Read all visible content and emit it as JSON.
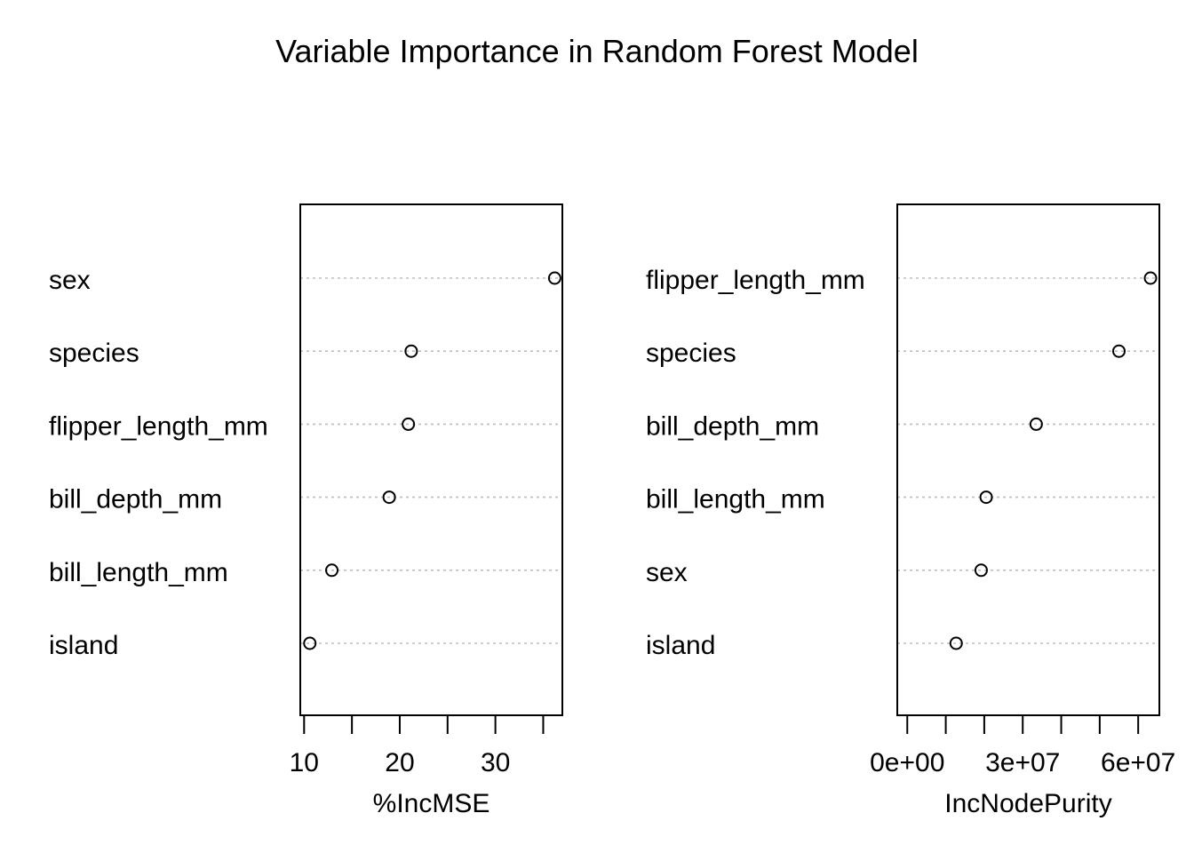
{
  "title": "Variable Importance in Random Forest Model",
  "chart_data": [
    {
      "type": "scatter",
      "subtype": "dotchart",
      "xlabel": "%IncMSE",
      "categories": [
        "sex",
        "species",
        "flipper_length_mm",
        "bill_depth_mm",
        "bill_length_mm",
        "island"
      ],
      "values": [
        36.2,
        21.2,
        20.9,
        18.9,
        12.9,
        10.6
      ],
      "xlim": [
        9.6,
        37.0
      ],
      "xticks": [
        10,
        15,
        20,
        25,
        30,
        35
      ],
      "xtick_labels": [
        "10",
        "",
        "20",
        "",
        "30",
        ""
      ],
      "grid": "dotted horizontal per category"
    },
    {
      "type": "scatter",
      "subtype": "dotchart",
      "xlabel": "IncNodePurity",
      "categories": [
        "flipper_length_mm",
        "species",
        "bill_depth_mm",
        "bill_length_mm",
        "sex",
        "island"
      ],
      "values": [
        63200000,
        55000000,
        33500000,
        20500000,
        19200000,
        12700000
      ],
      "xlim": [
        -2600000,
        65500000
      ],
      "xticks": [
        0,
        10000000,
        20000000,
        30000000,
        40000000,
        50000000,
        60000000
      ],
      "xtick_labels": [
        "0e+00",
        "",
        "",
        "3e+07",
        "",
        "",
        "6e+07"
      ],
      "grid": "dotted horizontal per category"
    }
  ]
}
